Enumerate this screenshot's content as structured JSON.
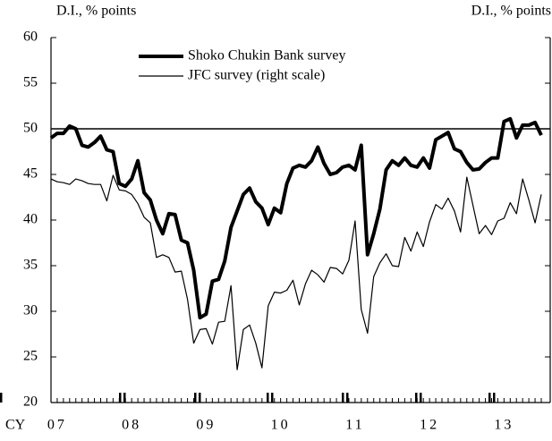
{
  "chart_data": {
    "type": "line",
    "y_label": "D.I., % points",
    "y2_label": "D.I., % points",
    "x_label": "CY",
    "categories": [
      null,
      "07",
      null,
      null,
      null,
      null,
      null,
      null,
      null,
      null,
      null,
      null,
      null,
      "08",
      null,
      null,
      null,
      null,
      null,
      null,
      null,
      null,
      null,
      null,
      null,
      "09",
      null,
      null,
      null,
      null,
      null,
      null,
      null,
      null,
      null,
      null,
      null,
      "10",
      null,
      null,
      null,
      null,
      null,
      null,
      null,
      null,
      null,
      null,
      null,
      "11",
      null,
      null,
      null,
      null,
      null,
      null,
      null,
      null,
      null,
      null,
      null,
      "12",
      null,
      null,
      null,
      null,
      null,
      null,
      null,
      null,
      null,
      null,
      null,
      "13",
      null,
      null,
      null,
      null,
      null,
      null
    ],
    "series": [
      {
        "name": "Shoko Chukin Bank survey",
        "color": "#000000",
        "width": 4,
        "values": [
          49,
          49.5,
          49.5,
          50.3,
          50,
          48.2,
          48,
          48.5,
          49.2,
          47.7,
          47.5,
          44,
          43.7,
          44.5,
          46.5,
          43,
          42.2,
          40,
          38.5,
          40.7,
          40.6,
          37.8,
          37.5,
          34.5,
          29.3,
          29.7,
          33.3,
          33.5,
          35.5,
          39.2,
          41,
          42.8,
          43.5,
          42,
          41.3,
          39.5,
          41.3,
          40.8,
          44,
          45.7,
          46,
          45.8,
          46.5,
          48,
          46.2,
          45,
          45.2,
          45.8,
          46,
          45.5,
          48.2,
          36.2,
          38.5,
          41.2,
          45.5,
          46.5,
          46,
          46.8,
          46,
          45.8,
          46.8,
          45.7,
          48.8,
          49.2,
          49.6,
          47.8,
          47.5,
          46.3,
          45.5,
          45.6,
          46.3,
          46.8,
          46.8,
          50.8,
          51.1,
          49,
          50.4,
          50.4,
          50.7,
          49.3
        ]
      },
      {
        "name": "JFC survey (right scale)",
        "color": "#000000",
        "width": 1.2,
        "values": [
          44.5,
          44.2,
          44.1,
          43.9,
          44.5,
          44.3,
          44,
          43.9,
          43.9,
          42.1,
          44.9,
          43.3,
          43.2,
          42.8,
          41.8,
          40.3,
          39.7,
          35.9,
          36.2,
          35.9,
          34.3,
          34.4,
          31.3,
          26.5,
          28,
          28.1,
          26.4,
          28.8,
          28.9,
          32.8,
          23.6,
          28,
          28.5,
          26.5,
          23.8,
          30.6,
          32.1,
          32,
          32.3,
          33.4,
          30.7,
          33,
          34.5,
          34,
          33.2,
          34.8,
          34.7,
          34.1,
          35.6,
          39.9,
          30.2,
          27.6,
          33.8,
          35.3,
          36.3,
          35,
          34.9,
          38.1,
          36.6,
          38.7,
          37.1,
          39.8,
          41.7,
          41.2,
          42.4,
          41,
          38.7,
          44.7,
          41.6,
          38.5,
          39.4,
          38.4,
          39.9,
          40.2,
          41.9,
          40.7,
          44.5,
          42.2,
          39.7,
          42.8
        ]
      }
    ],
    "reference_line": 50,
    "ylim": [
      20,
      60
    ],
    "yticks": [
      20,
      25,
      30,
      35,
      40,
      45,
      50,
      55,
      60
    ]
  }
}
